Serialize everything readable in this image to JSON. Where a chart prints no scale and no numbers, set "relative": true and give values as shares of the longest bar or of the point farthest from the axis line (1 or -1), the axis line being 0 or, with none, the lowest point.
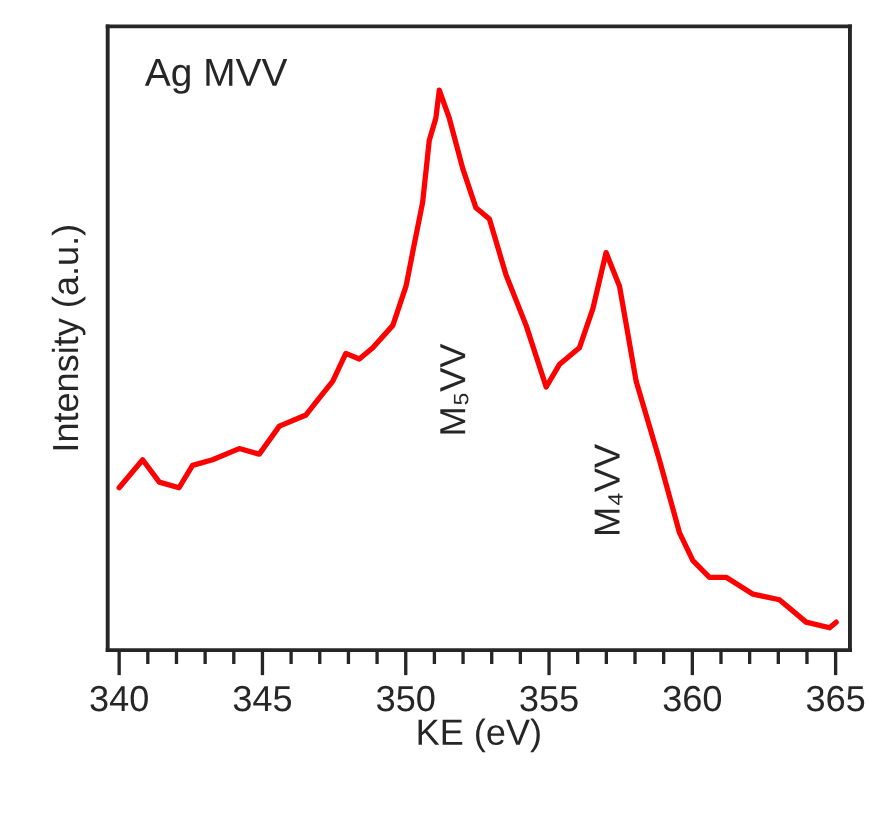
{
  "chart_data": {
    "type": "line",
    "relative": true,
    "xlabel": "KE (eV)",
    "ylabel": "Intensity (a.u.)",
    "annotations": [
      "Ag MVV",
      "M₅VV",
      "M₄VV"
    ],
    "xlim": [
      339.6,
      365.5
    ],
    "xticks": [
      340,
      {
        "value": 341,
        "label": null
      },
      {
        "value": 342,
        "label": null
      },
      {
        "value": 343,
        "label": null
      },
      {
        "value": 344,
        "label": null
      },
      345,
      {
        "value": 346,
        "label": null
      },
      {
        "value": 347,
        "label": null
      },
      {
        "value": 348,
        "label": null
      },
      {
        "value": 349,
        "label": null
      },
      350,
      {
        "value": 351,
        "label": null
      },
      {
        "value": 352,
        "label": null
      },
      {
        "value": 353,
        "label": null
      },
      {
        "value": 354,
        "label": null
      },
      355,
      {
        "value": 356,
        "label": null
      },
      {
        "value": 357,
        "label": null
      },
      {
        "value": 358,
        "label": null
      },
      {
        "value": 359,
        "label": null
      },
      360,
      {
        "value": 361,
        "label": null
      },
      {
        "value": 362,
        "label": null
      },
      {
        "value": 363,
        "label": null
      },
      {
        "value": 364,
        "label": null
      },
      365
    ],
    "tick_labels": "x",
    "grid": false,
    "legend": false,
    "marker": "none",
    "line_style": "solid",
    "series": [
      {
        "color": "#ff0000",
        "x": [
          340.0,
          340.82,
          341.4,
          342.09,
          342.56,
          343.26,
          344.19,
          344.89,
          345.59,
          346.52,
          346.98,
          347.45,
          347.91,
          348.38,
          348.85,
          349.55,
          350.01,
          350.24,
          350.59,
          350.82,
          351.05,
          351.17,
          351.52,
          351.99,
          352.45,
          352.92,
          353.5,
          354.2,
          354.9,
          355.36,
          356.06,
          356.53,
          356.99,
          357.46,
          358.04,
          358.85,
          359.55,
          360.02,
          360.6,
          361.18,
          362.12,
          363.04,
          363.97,
          364.79,
          365.02
        ],
        "values": [
          0.29,
          0.34,
          0.3,
          0.29,
          0.33,
          0.34,
          0.36,
          0.35,
          0.4,
          0.42,
          0.45,
          0.48,
          0.53,
          0.52,
          0.54,
          0.58,
          0.65,
          0.71,
          0.8,
          0.91,
          0.95,
          1.0,
          0.95,
          0.86,
          0.79,
          0.77,
          0.67,
          0.58,
          0.47,
          0.51,
          0.54,
          0.61,
          0.71,
          0.65,
          0.48,
          0.34,
          0.21,
          0.16,
          0.13,
          0.13,
          0.1,
          0.09,
          0.05,
          0.04,
          0.05
        ]
      }
    ]
  }
}
